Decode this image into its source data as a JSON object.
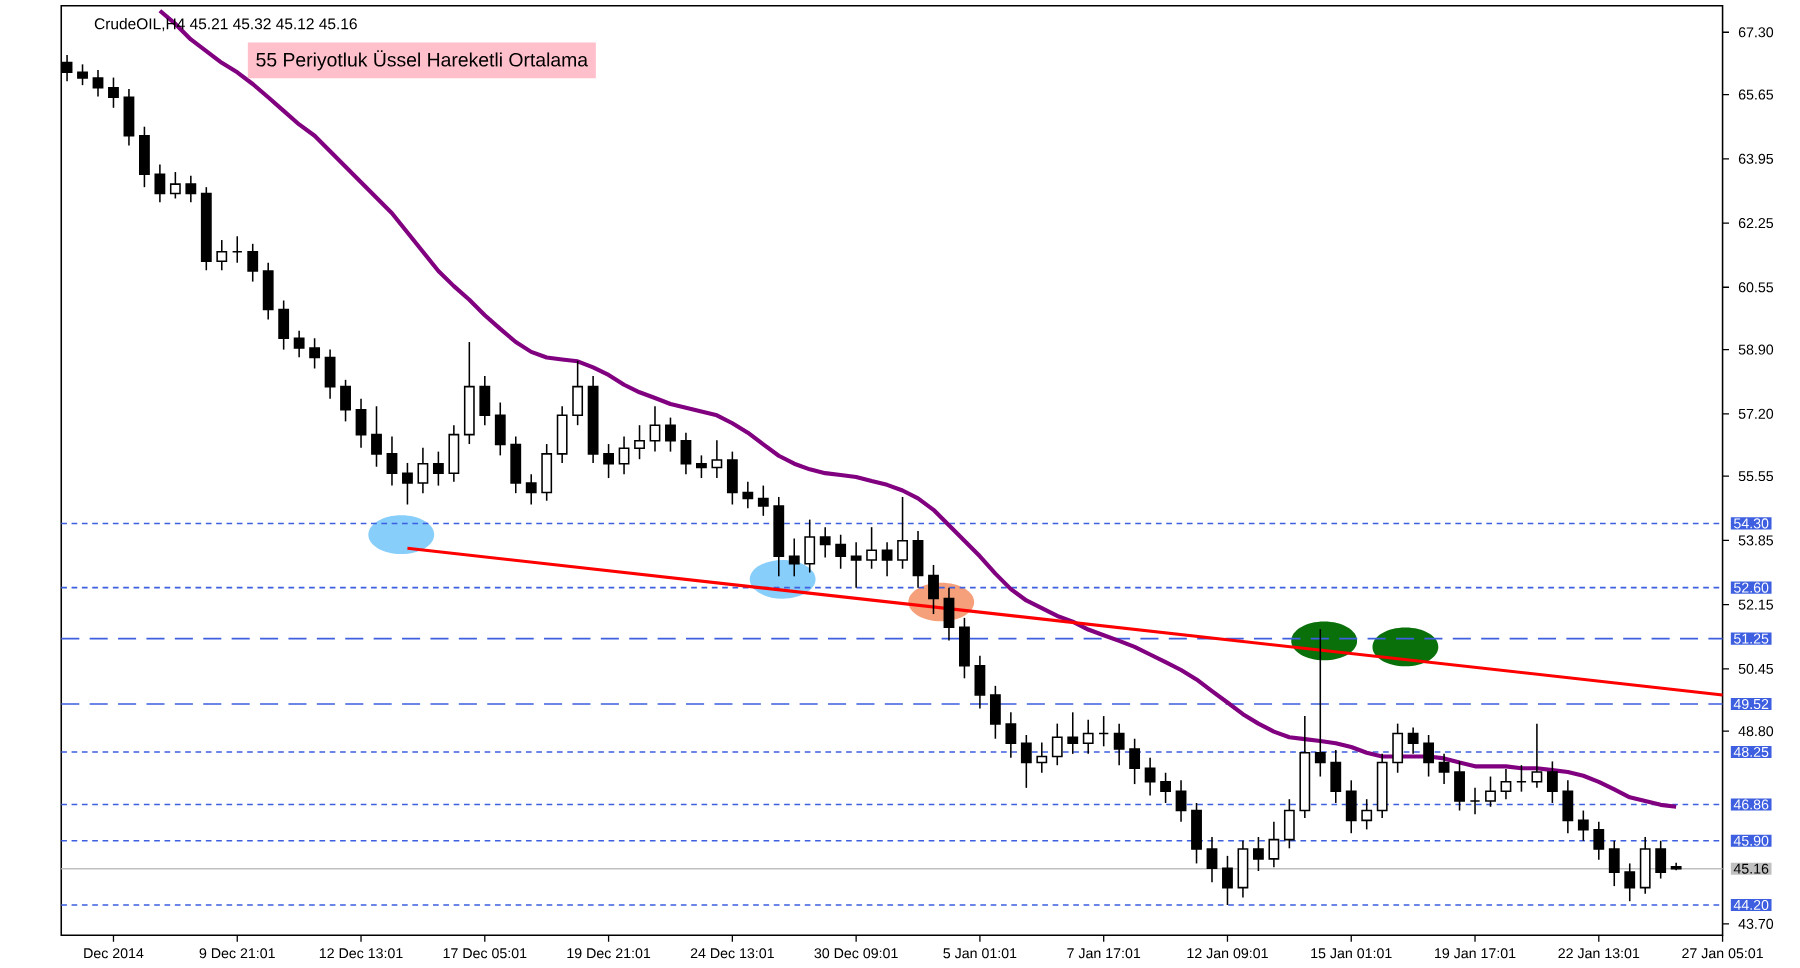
{
  "chart_data": {
    "type": "candlestick",
    "title": "CrudeOIL,H4  45.21 45.32 45.12 45.16",
    "annotations": [
      "55 Periyotluk Üssel Hareketli Ortalama"
    ],
    "categories": [
      null,
      null,
      null,
      "Dec 2014",
      null,
      null,
      null,
      null,
      null,
      null,
      null,
      "9 Dec 21:01",
      null,
      null,
      null,
      null,
      null,
      null,
      null,
      "12 Dec 13:01",
      null,
      null,
      null,
      null,
      null,
      null,
      null,
      "17 Dec 05:01",
      null,
      null,
      null,
      null,
      null,
      null,
      null,
      "19 Dec 21:01",
      null,
      null,
      null,
      null,
      null,
      null,
      null,
      "24 Dec 13:01",
      null,
      null,
      null,
      null,
      null,
      null,
      null,
      "30 Dec 09:01",
      null,
      null,
      null,
      null,
      null,
      null,
      null,
      "5 Jan 01:01",
      null,
      null,
      null,
      null,
      null,
      null,
      null,
      "7 Jan 17:01",
      null,
      null,
      null,
      null,
      null,
      null,
      null,
      "12 Jan 09:01",
      null,
      null,
      null,
      null,
      null,
      null,
      null,
      "15 Jan 01:01",
      null,
      null,
      null,
      null,
      null,
      null,
      null,
      "19 Jan 17:01",
      null,
      null,
      null,
      null,
      null,
      null,
      null,
      "22 Jan 13:01",
      null,
      null,
      null,
      null,
      null,
      null,
      null,
      "27 Jan 05:01"
    ],
    "ohlc": [
      [
        66.5,
        66.7,
        66.0,
        66.24
      ],
      [
        66.24,
        66.45,
        65.9,
        66.09
      ],
      [
        66.09,
        66.3,
        65.6,
        65.83
      ],
      [
        65.83,
        66.1,
        65.3,
        65.58
      ],
      [
        65.58,
        65.8,
        64.3,
        64.56
      ],
      [
        64.56,
        64.8,
        63.2,
        63.54
      ],
      [
        63.54,
        63.8,
        62.8,
        63.03
      ],
      [
        63.03,
        63.6,
        62.9,
        63.28
      ],
      [
        63.28,
        63.5,
        62.8,
        63.03
      ],
      [
        63.03,
        63.2,
        61.0,
        61.24
      ],
      [
        61.24,
        61.8,
        61.0,
        61.49
      ],
      [
        61.49,
        61.9,
        61.2,
        61.49
      ],
      [
        61.49,
        61.7,
        60.7,
        60.98
      ],
      [
        60.98,
        61.2,
        59.7,
        59.96
      ],
      [
        59.96,
        60.2,
        58.9,
        59.2
      ],
      [
        59.2,
        59.4,
        58.7,
        58.94
      ],
      [
        58.94,
        59.2,
        58.4,
        58.69
      ],
      [
        58.69,
        58.9,
        57.6,
        57.92
      ],
      [
        57.92,
        58.1,
        57.0,
        57.31
      ],
      [
        57.31,
        57.6,
        56.3,
        56.65
      ],
      [
        56.65,
        57.4,
        55.8,
        56.14
      ],
      [
        56.14,
        56.6,
        55.3,
        55.63
      ],
      [
        55.63,
        55.9,
        54.8,
        55.37
      ],
      [
        55.37,
        56.3,
        55.1,
        55.88
      ],
      [
        55.88,
        56.2,
        55.3,
        55.63
      ],
      [
        55.63,
        56.9,
        55.4,
        56.65
      ],
      [
        56.65,
        59.1,
        56.4,
        57.92
      ],
      [
        57.92,
        58.2,
        56.9,
        57.16
      ],
      [
        57.16,
        57.5,
        56.1,
        56.39
      ],
      [
        56.39,
        56.6,
        55.1,
        55.37
      ],
      [
        55.37,
        55.6,
        54.8,
        55.12
      ],
      [
        55.12,
        56.4,
        54.9,
        56.14
      ],
      [
        56.14,
        57.4,
        55.9,
        57.16
      ],
      [
        57.16,
        58.6,
        56.9,
        57.92
      ],
      [
        57.92,
        58.2,
        55.9,
        56.14
      ],
      [
        56.14,
        56.4,
        55.5,
        55.88
      ],
      [
        55.88,
        56.6,
        55.6,
        56.29
      ],
      [
        56.29,
        56.9,
        56.0,
        56.49
      ],
      [
        56.49,
        57.4,
        56.2,
        56.9
      ],
      [
        56.9,
        57.1,
        56.2,
        56.49
      ],
      [
        56.49,
        56.7,
        55.6,
        55.88
      ],
      [
        55.88,
        56.1,
        55.5,
        55.78
      ],
      [
        55.78,
        56.5,
        55.5,
        55.98
      ],
      [
        55.98,
        56.2,
        54.8,
        55.12
      ],
      [
        55.12,
        55.4,
        54.7,
        54.96
      ],
      [
        54.96,
        55.3,
        54.5,
        54.76
      ],
      [
        54.76,
        55.0,
        52.9,
        53.43
      ],
      [
        53.43,
        53.9,
        52.9,
        53.23
      ],
      [
        53.23,
        54.4,
        53.0,
        53.94
      ],
      [
        53.94,
        54.2,
        53.4,
        53.74
      ],
      [
        53.74,
        54.0,
        53.1,
        53.43
      ],
      [
        53.43,
        53.8,
        52.6,
        53.33
      ],
      [
        53.33,
        54.2,
        53.1,
        53.59
      ],
      [
        53.59,
        53.8,
        52.9,
        53.33
      ],
      [
        53.33,
        55.0,
        53.1,
        53.84
      ],
      [
        53.84,
        54.1,
        52.6,
        52.92
      ],
      [
        52.92,
        53.2,
        51.9,
        52.31
      ],
      [
        52.31,
        52.6,
        51.2,
        51.55
      ],
      [
        51.55,
        51.8,
        50.2,
        50.53
      ],
      [
        50.53,
        50.8,
        49.4,
        49.76
      ],
      [
        49.76,
        50.0,
        48.6,
        48.99
      ],
      [
        48.99,
        49.3,
        48.1,
        48.48
      ],
      [
        48.48,
        48.7,
        47.3,
        47.97
      ],
      [
        47.97,
        48.5,
        47.7,
        48.13
      ],
      [
        48.13,
        49.0,
        47.9,
        48.64
      ],
      [
        48.64,
        49.3,
        48.2,
        48.48
      ],
      [
        48.48,
        49.1,
        48.2,
        48.74
      ],
      [
        48.74,
        49.2,
        48.4,
        48.74
      ],
      [
        48.74,
        49.0,
        47.9,
        48.33
      ],
      [
        48.33,
        48.6,
        47.4,
        47.82
      ],
      [
        47.82,
        48.1,
        47.1,
        47.46
      ],
      [
        47.46,
        47.7,
        46.9,
        47.21
      ],
      [
        47.21,
        47.5,
        46.4,
        46.7
      ],
      [
        46.7,
        46.9,
        45.3,
        45.68
      ],
      [
        45.68,
        46.0,
        44.8,
        45.17
      ],
      [
        45.17,
        45.5,
        44.2,
        44.66
      ],
      [
        44.66,
        45.9,
        44.4,
        45.68
      ],
      [
        45.68,
        46.0,
        45.1,
        45.42
      ],
      [
        45.42,
        46.4,
        45.2,
        45.93
      ],
      [
        45.93,
        47.0,
        45.7,
        46.7
      ],
      [
        46.7,
        49.2,
        46.5,
        48.23
      ],
      [
        48.23,
        51.5,
        47.6,
        47.97
      ],
      [
        47.97,
        48.3,
        46.9,
        47.21
      ],
      [
        47.21,
        47.5,
        46.1,
        46.44
      ],
      [
        46.44,
        47.0,
        46.2,
        46.7
      ],
      [
        46.7,
        48.2,
        46.5,
        47.97
      ],
      [
        47.97,
        49.0,
        47.7,
        48.74
      ],
      [
        48.74,
        48.9,
        48.2,
        48.48
      ],
      [
        48.48,
        48.7,
        47.6,
        47.97
      ],
      [
        47.97,
        48.2,
        47.4,
        47.72
      ],
      [
        47.72,
        48.0,
        46.7,
        46.95
      ],
      [
        46.95,
        47.3,
        46.6,
        46.95
      ],
      [
        46.95,
        47.6,
        46.8,
        47.21
      ],
      [
        47.21,
        47.8,
        47.0,
        47.46
      ],
      [
        47.46,
        47.9,
        47.2,
        47.46
      ],
      [
        47.46,
        49.0,
        47.3,
        47.72
      ],
      [
        47.72,
        48.0,
        46.9,
        47.21
      ],
      [
        47.21,
        47.5,
        46.1,
        46.44
      ],
      [
        46.44,
        46.7,
        45.9,
        46.19
      ],
      [
        46.19,
        46.4,
        45.4,
        45.68
      ],
      [
        45.68,
        45.9,
        44.7,
        45.07
      ],
      [
        45.07,
        45.3,
        44.3,
        44.66
      ],
      [
        44.66,
        46.0,
        44.5,
        45.68
      ],
      [
        45.68,
        45.9,
        44.9,
        45.07
      ],
      [
        45.21,
        45.32,
        45.12,
        45.16
      ],
      null,
      null,
      null
    ],
    "series": [
      {
        "type": "line",
        "color": "#800080",
        "values": [
          null,
          null,
          null,
          null,
          null,
          null,
          67.87,
          67.52,
          67.11,
          66.8,
          66.49,
          66.24,
          65.93,
          65.58,
          65.22,
          64.86,
          64.56,
          64.15,
          63.74,
          63.33,
          62.92,
          62.51,
          62.0,
          61.49,
          60.98,
          60.58,
          60.22,
          59.81,
          59.45,
          59.1,
          58.84,
          58.69,
          58.64,
          58.59,
          58.43,
          58.23,
          57.97,
          57.77,
          57.62,
          57.46,
          57.36,
          57.26,
          57.16,
          56.95,
          56.7,
          56.39,
          56.09,
          55.88,
          55.73,
          55.63,
          55.58,
          55.53,
          55.42,
          55.32,
          55.17,
          54.96,
          54.66,
          54.25,
          53.84,
          53.43,
          52.97,
          52.56,
          52.26,
          52.06,
          51.85,
          51.7,
          51.49,
          51.34,
          51.19,
          51.03,
          50.83,
          50.63,
          50.42,
          50.17,
          49.86,
          49.56,
          49.25,
          49.0,
          48.79,
          48.64,
          48.59,
          48.54,
          48.48,
          48.38,
          48.23,
          48.13,
          48.13,
          48.13,
          48.13,
          48.08,
          47.97,
          47.87,
          47.87,
          47.87,
          47.82,
          47.82,
          47.77,
          47.72,
          47.62,
          47.46,
          47.26,
          47.05,
          46.95,
          46.85,
          46.8,
          null,
          null,
          null
        ]
      },
      {
        "type": "line",
        "color": "#ff0000",
        "values": [
          null,
          null,
          null,
          null,
          null,
          null,
          null,
          null,
          null,
          null,
          null,
          null,
          null,
          null,
          null,
          null,
          null,
          null,
          null,
          null,
          null,
          null,
          53.64,
          null,
          null,
          null,
          null,
          null,
          null,
          null,
          null,
          null,
          null,
          null,
          null,
          null,
          null,
          null,
          null,
          null,
          null,
          null,
          null,
          null,
          null,
          null,
          null,
          null,
          null,
          null,
          null,
          null,
          null,
          null,
          null,
          null,
          null,
          null,
          null,
          null,
          null,
          null,
          null,
          null,
          null,
          null,
          null,
          null,
          null,
          null,
          null,
          null,
          null,
          null,
          null,
          null,
          null,
          null,
          null,
          null,
          null,
          null,
          null,
          null,
          null,
          null,
          null,
          null,
          null,
          null,
          null,
          null,
          null,
          null,
          null,
          null,
          null,
          null,
          null,
          null,
          null,
          null,
          null,
          null,
          null,
          null,
          null,
          49.76
        ]
      }
    ],
    "ylim": [
      43.4,
      68.0
    ],
    "yticks": [
      {
        "value": 67.3,
        "label": "67.30"
      },
      {
        "value": 65.65,
        "label": "65.65"
      },
      {
        "value": 63.95,
        "label": "63.95"
      },
      {
        "value": 62.25,
        "label": "62.25"
      },
      {
        "value": 60.55,
        "label": "60.55"
      },
      {
        "value": 58.9,
        "label": "58.90"
      },
      {
        "value": 57.2,
        "label": "57.20"
      },
      {
        "value": 55.55,
        "label": "55.55"
      },
      {
        "value": 53.85,
        "label": "53.85"
      },
      {
        "value": 52.15,
        "label": "52.15"
      },
      {
        "value": 50.45,
        "label": "50.45"
      },
      {
        "value": 48.8,
        "label": "48.80"
      },
      {
        "value": 43.7,
        "label": "43.70"
      }
    ],
    "ref_lines": [
      {
        "axis": "y",
        "value": 54.3,
        "label": "54.30",
        "color": "#3d5fe0",
        "line_style": "dotted"
      },
      {
        "axis": "y",
        "value": 52.6,
        "label": "52.60",
        "color": "#3d5fe0",
        "line_style": "dotted"
      },
      {
        "axis": "y",
        "value": 51.25,
        "label": "51.25",
        "color": "#3d5fe0",
        "line_style": "dashed"
      },
      {
        "axis": "y",
        "value": 49.52,
        "label": "49.52",
        "color": "#3d5fe0",
        "line_style": "dashed"
      },
      {
        "axis": "y",
        "value": 48.25,
        "label": "48.25",
        "color": "#3d5fe0",
        "line_style": "dotted"
      },
      {
        "axis": "y",
        "value": 46.86,
        "label": "46.86",
        "color": "#3d5fe0",
        "line_style": "dotted"
      },
      {
        "axis": "y",
        "value": 45.9,
        "label": "45.90",
        "color": "#3d5fe0",
        "line_style": "dotted"
      },
      {
        "axis": "y",
        "value": 44.2,
        "label": "44.20",
        "color": "#3d5fe0",
        "line_style": "dotted"
      },
      {
        "axis": "y",
        "value": 45.16,
        "label": "45.16",
        "color": "#c0c0c0",
        "line_style": "solid"
      }
    ]
  }
}
